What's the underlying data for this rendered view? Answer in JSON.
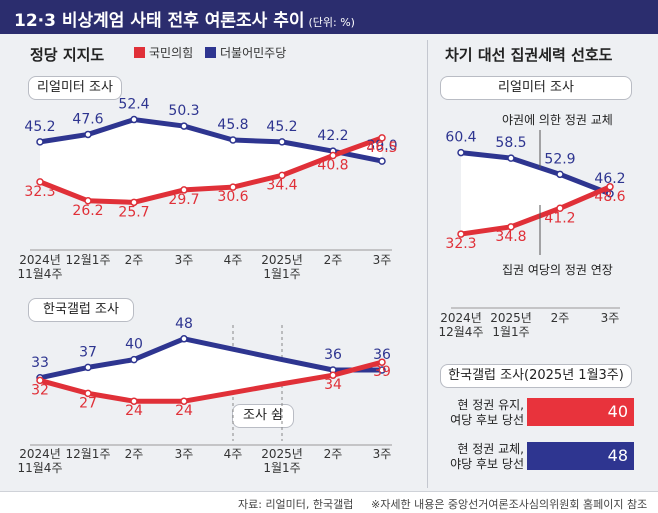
{
  "header": {
    "title": "12·3 비상계엄 사태 전후 여론조사 추이",
    "unit": "(단위: %)"
  },
  "left": {
    "title": "정당 지지도",
    "legend": [
      {
        "name": "국민의힘",
        "color": "#e03038"
      },
      {
        "name": "더불어민주당",
        "color": "#2e3590"
      }
    ],
    "realmeter_label": "리얼미터 조사",
    "gallup_label": "한국갤럽 조사",
    "gap_label": "조사 쉼"
  },
  "right": {
    "title": "차기 대선 집권세력 선호도",
    "realmeter_label": "리얼미터 조사",
    "annot_top": "야권에 의한 정권 교체",
    "annot_bottom": "집권 여당의 정권 연장",
    "gallup_label": "한국갤럽 조사(2025년 1월3주)",
    "gallup_bars": [
      {
        "label": "현 정권 유지, 여당 후보 당선",
        "line1": "현 정권 유지,",
        "line2": "여당 후보 당선",
        "value": 40,
        "color": "#e8333c"
      },
      {
        "label": "현 정권 교체, 야당 후보 당선",
        "line1": "현 정권 교체,",
        "line2": "야당 후보 당선",
        "value": 48,
        "color": "#2e3590"
      }
    ]
  },
  "footer": {
    "source": "자료: 리얼미터, 한국갤럽",
    "note": "※자세한 내용은 중앙선거여론조사심의위원회 홈페이지 참조"
  },
  "chart_data": [
    {
      "type": "line",
      "title": "정당 지지도 - 리얼미터 조사",
      "categories": [
        [
          "2024년",
          "11월4주"
        ],
        [
          "12월1주"
        ],
        [
          "2주"
        ],
        [
          "3주"
        ],
        [
          "4주"
        ],
        [
          "2025년",
          "1월1주"
        ],
        [
          "2주"
        ],
        [
          "3주"
        ]
      ],
      "series": [
        {
          "name": "더불어민주당",
          "color": "#2e3590",
          "values": [
            45.2,
            47.6,
            52.4,
            50.3,
            45.8,
            45.2,
            42.2,
            39.0
          ],
          "labels": [
            "45.2",
            "47.6",
            "52.4",
            "50.3",
            "45.8",
            "45.2",
            "42.2",
            "39.0"
          ]
        },
        {
          "name": "국민의힘",
          "color": "#e03038",
          "values": [
            32.3,
            26.2,
            25.7,
            29.7,
            30.6,
            34.4,
            40.8,
            46.5
          ],
          "labels": [
            "32.3",
            "26.2",
            "25.7",
            "29.7",
            "30.6",
            "34.4",
            "40.8",
            "46.5"
          ]
        }
      ]
    },
    {
      "type": "line",
      "title": "정당 지지도 - 한국갤럽 조사",
      "categories": [
        [
          "2024년",
          "11월4주"
        ],
        [
          "12월1주"
        ],
        [
          "2주"
        ],
        [
          "3주"
        ],
        [
          "4주"
        ],
        [
          "2025년",
          "1월1주"
        ],
        [
          "2주"
        ],
        [
          "3주"
        ]
      ],
      "gap_categories": [
        "4주",
        "2025년 1월1주"
      ],
      "series": [
        {
          "name": "더불어민주당",
          "color": "#2e3590",
          "values": [
            33,
            37,
            40,
            48,
            null,
            null,
            36,
            36
          ],
          "labels": [
            "33",
            "37",
            "40",
            "48",
            "",
            "",
            "36",
            "36"
          ]
        },
        {
          "name": "국민의힘",
          "color": "#e03038",
          "values": [
            32,
            27,
            24,
            24,
            null,
            null,
            34,
            39
          ],
          "labels": [
            "32",
            "27",
            "24",
            "24",
            "",
            "",
            "34",
            "39"
          ]
        }
      ]
    },
    {
      "type": "line",
      "title": "차기 대선 집권세력 선호도 - 리얼미터 조사",
      "categories": [
        [
          "2024년",
          "12월4주"
        ],
        [
          "2025년",
          "1월1주"
        ],
        [
          "2주"
        ],
        [
          "3주"
        ]
      ],
      "series": [
        {
          "name": "야권에 의한 정권 교체",
          "color": "#2e3590",
          "values": [
            60.4,
            58.5,
            52.9,
            46.2
          ],
          "labels": [
            "60.4",
            "58.5",
            "52.9",
            "46.2"
          ]
        },
        {
          "name": "집권 여당의 정권 연장",
          "color": "#e03038",
          "values": [
            32.3,
            34.8,
            41.2,
            48.6
          ],
          "labels": [
            "32.3",
            "34.8",
            "41.2",
            "48.6"
          ]
        }
      ]
    },
    {
      "type": "bar",
      "title": "한국갤럽 조사(2025년 1월3주)",
      "categories": [
        "현 정권 유지, 여당 후보 당선",
        "현 정권 교체, 야당 후보 당선"
      ],
      "values": [
        40,
        48
      ]
    }
  ]
}
